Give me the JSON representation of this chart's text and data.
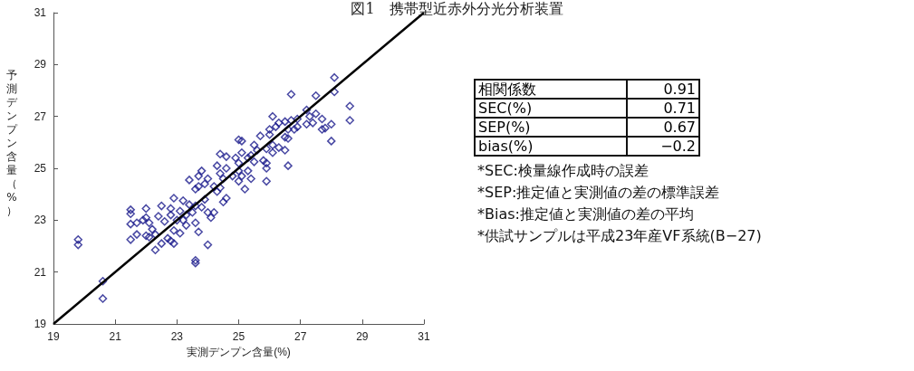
{
  "chart_data": {
    "type": "scatter",
    "title": "図1　携帯型近赤外分光分析装置",
    "xlabel": "実測デンプン含量(%)",
    "ylabel": "予測デンプン含量（%）",
    "xlim": [
      19,
      31
    ],
    "xticks": [
      19,
      21,
      23,
      25,
      27,
      29,
      31
    ],
    "ylim": [
      19,
      31
    ],
    "yticks": [
      19,
      21,
      23,
      25,
      27,
      29,
      31
    ],
    "marker": "diamond",
    "grid": false,
    "annotations": [
      "相関係数",
      "0.91",
      "SEC(%)",
      "0.71",
      "SEP(%)",
      "0.67",
      "bias(%)",
      "−0.2",
      "*SEC:検量線作成時の誤差",
      "*SEP:推定値と実測値の差の標準誤差",
      "*Bias:推定値と実測値の差の平均",
      "*供試サンプルは平成23年産VF系統(B−27)"
    ],
    "series": [
      {
        "color": "#1a1a8c",
        "x": [
          19.8,
          19.8,
          20.6,
          20.6,
          21.5,
          21.5,
          21.5,
          21.5,
          21.7,
          21.7,
          21.9,
          22.0,
          22.0,
          22.0,
          22.1,
          22.2,
          22.1,
          22.3,
          22.3,
          22.4,
          22.5,
          22.5,
          22.6,
          22.7,
          22.8,
          22.8,
          22.8,
          22.9,
          22.9,
          22.9,
          23.0,
          23.1,
          23.1,
          23.2,
          23.2,
          23.3,
          23.3,
          23.4,
          23.4,
          23.5,
          23.6,
          23.6,
          23.6,
          23.6,
          23.6,
          23.7,
          23.7,
          23.7,
          23.8,
          23.8,
          23.9,
          23.9,
          24.0,
          24.0,
          24.0,
          24.1,
          24.2,
          24.2,
          24.3,
          24.3,
          24.4,
          24.4,
          24.4,
          24.5,
          24.5,
          24.6,
          24.6,
          24.6,
          24.8,
          24.9,
          25.0,
          25.0,
          25.0,
          25.0,
          25.1,
          25.1,
          25.1,
          25.2,
          25.3,
          25.3,
          25.4,
          25.4,
          25.5,
          25.5,
          25.6,
          25.7,
          25.8,
          25.9,
          25.9,
          25.9,
          25.9,
          26.0,
          26.0,
          26.1,
          26.1,
          26.1,
          26.2,
          26.3,
          26.3,
          26.5,
          26.5,
          26.5,
          26.6,
          26.6,
          26.6,
          26.7,
          26.7,
          26.8,
          26.9,
          26.9,
          27.2,
          27.2,
          27.3,
          27.4,
          27.5,
          27.5,
          27.7,
          27.7,
          27.8,
          28.0,
          28.0,
          28.1,
          28.1,
          28.6,
          28.6
        ],
        "values": [
          22.25,
          22.05,
          20.65,
          19.98,
          23.4,
          23.25,
          22.85,
          22.25,
          22.9,
          22.45,
          23.0,
          23.45,
          23.1,
          22.4,
          22.35,
          22.65,
          22.9,
          22.45,
          21.85,
          23.15,
          23.55,
          22.1,
          22.95,
          22.3,
          23.45,
          23.2,
          22.2,
          23.85,
          22.1,
          22.6,
          23.0,
          23.35,
          22.5,
          23.75,
          23.0,
          22.8,
          23.2,
          24.55,
          23.6,
          23.3,
          23.55,
          22.9,
          24.2,
          21.45,
          21.35,
          22.55,
          24.7,
          24.3,
          24.9,
          23.5,
          24.4,
          23.8,
          22.05,
          23.3,
          24.6,
          23.1,
          24.3,
          23.3,
          24.1,
          25.1,
          24.8,
          25.55,
          24.25,
          23.7,
          24.6,
          25.45,
          23.85,
          25.0,
          24.7,
          25.4,
          24.5,
          25.2,
          26.1,
          24.9,
          24.7,
          25.6,
          26.05,
          24.2,
          25.4,
          24.9,
          24.6,
          25.5,
          25.25,
          25.9,
          25.7,
          26.25,
          25.3,
          24.5,
          25.0,
          25.2,
          25.75,
          26.5,
          26.3,
          25.6,
          25.9,
          27.0,
          26.6,
          26.75,
          25.8,
          25.7,
          26.8,
          26.2,
          25.1,
          26.5,
          26.15,
          27.85,
          26.85,
          26.5,
          26.6,
          26.9,
          27.25,
          26.7,
          27.0,
          26.75,
          27.8,
          27.1,
          26.9,
          26.5,
          26.55,
          26.7,
          26.05,
          28.5,
          27.95,
          27.4,
          26.85
        ]
      },
      {
        "type": "line",
        "color": "#000000",
        "marker": "none",
        "x": [
          19,
          31
        ],
        "values": [
          19,
          31
        ]
      }
    ]
  }
}
